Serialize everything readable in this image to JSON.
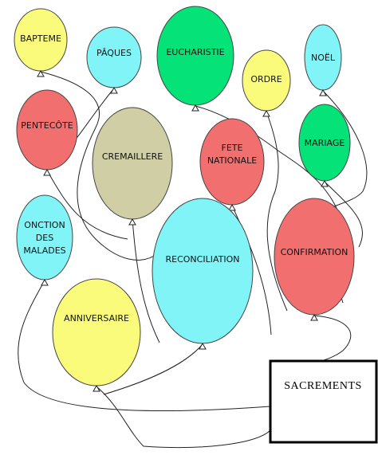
{
  "colors": {
    "yellow": "#fbfb7b",
    "cyan": "#80f4f7",
    "green": "#05e277",
    "red": "#f1706f",
    "khaki": "#cfcea5"
  },
  "target": {
    "label": "SACREMENTS"
  },
  "balloons": [
    {
      "id": "bapteme",
      "lines": [
        "BAPTEME"
      ],
      "color": "yellow"
    },
    {
      "id": "paques",
      "lines": [
        "PÂQUES"
      ],
      "color": "cyan"
    },
    {
      "id": "eucharistie",
      "lines": [
        "EUCHARISTIE"
      ],
      "color": "green"
    },
    {
      "id": "ordre",
      "lines": [
        "ORDRE"
      ],
      "color": "yellow"
    },
    {
      "id": "noel",
      "lines": [
        "NOËL"
      ],
      "color": "cyan"
    },
    {
      "id": "pentecote",
      "lines": [
        "PENTECÔTE"
      ],
      "color": "red"
    },
    {
      "id": "cremaillere",
      "lines": [
        "CREMAILLERE"
      ],
      "color": "khaki"
    },
    {
      "id": "fete-nationale",
      "lines": [
        "FETE",
        "NATIONALE"
      ],
      "color": "red"
    },
    {
      "id": "mariage",
      "lines": [
        "MARIAGE"
      ],
      "color": "green"
    },
    {
      "id": "onction-des-malades",
      "lines": [
        "ONCTION",
        "DES",
        "MALADES"
      ],
      "color": "cyan"
    },
    {
      "id": "reconciliation",
      "lines": [
        "RECONCILIATION"
      ],
      "color": "cyan"
    },
    {
      "id": "confirmation",
      "lines": [
        "CONFIRMATION"
      ],
      "color": "red"
    },
    {
      "id": "anniversaire",
      "lines": [
        "ANNIVERSAIRE"
      ],
      "color": "yellow"
    }
  ]
}
